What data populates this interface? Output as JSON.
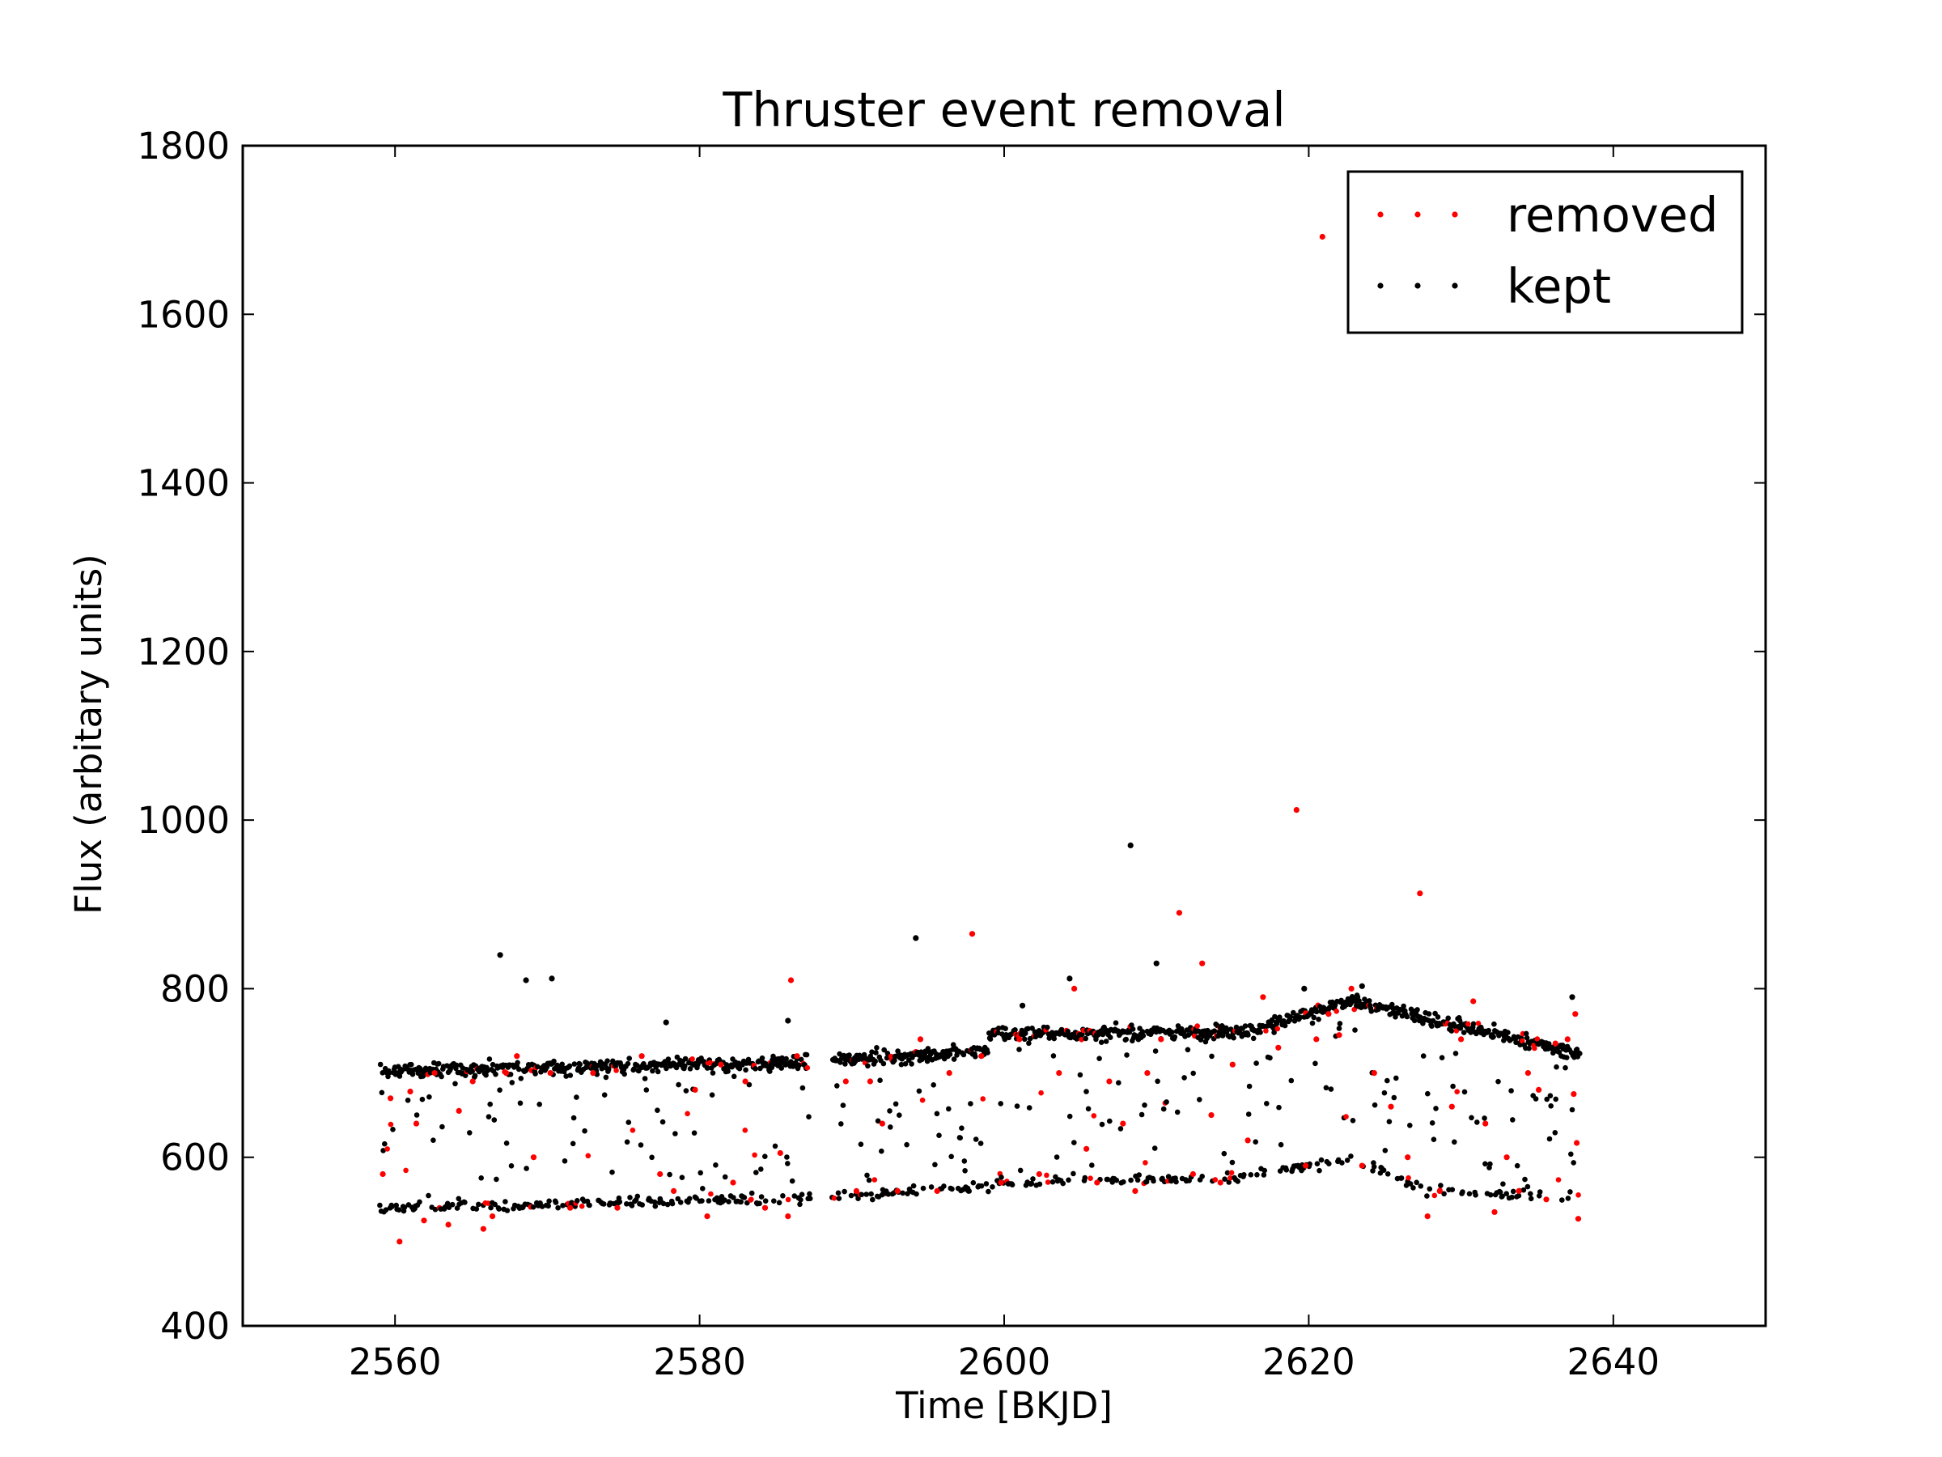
{
  "chart_data": {
    "type": "scatter",
    "title": "Thruster event removal",
    "xlabel": "Time [BKJD]",
    "ylabel": "Flux (arbitary units)",
    "xlim": [
      2550,
      2650
    ],
    "ylim": [
      400,
      1800
    ],
    "xticks": [
      2560,
      2580,
      2600,
      2620,
      2640
    ],
    "yticks": [
      400,
      600,
      800,
      1000,
      1200,
      1400,
      1600,
      1800
    ],
    "grid": false,
    "legend_position": "top-right",
    "series": [
      {
        "name": "removed",
        "color": "#ff0000",
        "points": [
          [
            2559.2,
            580
          ],
          [
            2559.7,
            670
          ],
          [
            2560.3,
            500
          ],
          [
            2561.0,
            678
          ],
          [
            2561.4,
            640
          ],
          [
            2561.9,
            525
          ],
          [
            2562.6,
            700
          ],
          [
            2563.5,
            520
          ],
          [
            2564.2,
            655
          ],
          [
            2565.1,
            690
          ],
          [
            2565.8,
            515
          ],
          [
            2566.4,
            530
          ],
          [
            2567.3,
            700
          ],
          [
            2568.0,
            720
          ],
          [
            2569.1,
            600
          ],
          [
            2570.2,
            700
          ],
          [
            2571.5,
            540
          ],
          [
            2573.0,
            700
          ],
          [
            2574.6,
            540
          ],
          [
            2576.2,
            720
          ],
          [
            2577.4,
            580
          ],
          [
            2578.3,
            560
          ],
          [
            2579.7,
            680
          ],
          [
            2580.5,
            530
          ],
          [
            2581.4,
            710
          ],
          [
            2582.2,
            570
          ],
          [
            2583.0,
            690
          ],
          [
            2584.3,
            540
          ],
          [
            2585.3,
            605
          ],
          [
            2585.8,
            530
          ],
          [
            2586.0,
            810
          ],
          [
            2586.4,
            720
          ],
          [
            2589.6,
            690
          ],
          [
            2590.3,
            560
          ],
          [
            2591.2,
            690
          ],
          [
            2592.0,
            640
          ],
          [
            2593.0,
            560
          ],
          [
            2594.5,
            740
          ],
          [
            2595.6,
            560
          ],
          [
            2596.4,
            700
          ],
          [
            2597.9,
            865
          ],
          [
            2598.5,
            720
          ],
          [
            2599.8,
            570
          ],
          [
            2601.0,
            740
          ],
          [
            2602.3,
            580
          ],
          [
            2603.6,
            700
          ],
          [
            2604.6,
            800
          ],
          [
            2605.4,
            610
          ],
          [
            2606.1,
            570
          ],
          [
            2606.9,
            690
          ],
          [
            2607.8,
            640
          ],
          [
            2608.6,
            560
          ],
          [
            2609.4,
            700
          ],
          [
            2610.3,
            740
          ],
          [
            2611.5,
            890
          ],
          [
            2612.4,
            580
          ],
          [
            2613.0,
            830
          ],
          [
            2613.6,
            650
          ],
          [
            2614.2,
            570
          ],
          [
            2615.0,
            710
          ],
          [
            2616.0,
            620
          ],
          [
            2617.0,
            790
          ],
          [
            2618.0,
            730
          ],
          [
            2619.2,
            1012
          ],
          [
            2619.8,
            590
          ],
          [
            2620.5,
            740
          ],
          [
            2620.9,
            1692
          ],
          [
            2621.3,
            770
          ],
          [
            2622.0,
            745
          ],
          [
            2622.8,
            800
          ],
          [
            2623.5,
            590
          ],
          [
            2624.3,
            700
          ],
          [
            2625.4,
            660
          ],
          [
            2626.5,
            600
          ],
          [
            2627.3,
            913
          ],
          [
            2627.8,
            530
          ],
          [
            2628.6,
            560
          ],
          [
            2629.4,
            660
          ],
          [
            2630.0,
            740
          ],
          [
            2630.8,
            785
          ],
          [
            2631.6,
            640
          ],
          [
            2632.2,
            535
          ],
          [
            2633.0,
            600
          ],
          [
            2633.8,
            560
          ],
          [
            2634.4,
            700
          ],
          [
            2635.1,
            680
          ],
          [
            2635.6,
            550
          ],
          [
            2636.2,
            735
          ],
          [
            2637.0,
            740
          ],
          [
            2637.5,
            770
          ],
          [
            2637.6,
            617
          ],
          [
            2637.7,
            527
          ],
          [
            2637.4,
            675
          ]
        ]
      },
      {
        "name": "kept",
        "color": "#000000",
        "points": [
          [
            2566.9,
            840
          ],
          [
            2568.6,
            810
          ],
          [
            2570.3,
            812
          ],
          [
            2577.8,
            760
          ],
          [
            2585.8,
            762
          ],
          [
            2594.2,
            860
          ],
          [
            2601.2,
            780
          ],
          [
            2604.3,
            812
          ],
          [
            2608.3,
            970
          ],
          [
            2610.0,
            830
          ],
          [
            2619.7,
            800
          ],
          [
            2623.5,
            803
          ],
          [
            2637.3,
            790
          ]
        ]
      }
    ]
  }
}
